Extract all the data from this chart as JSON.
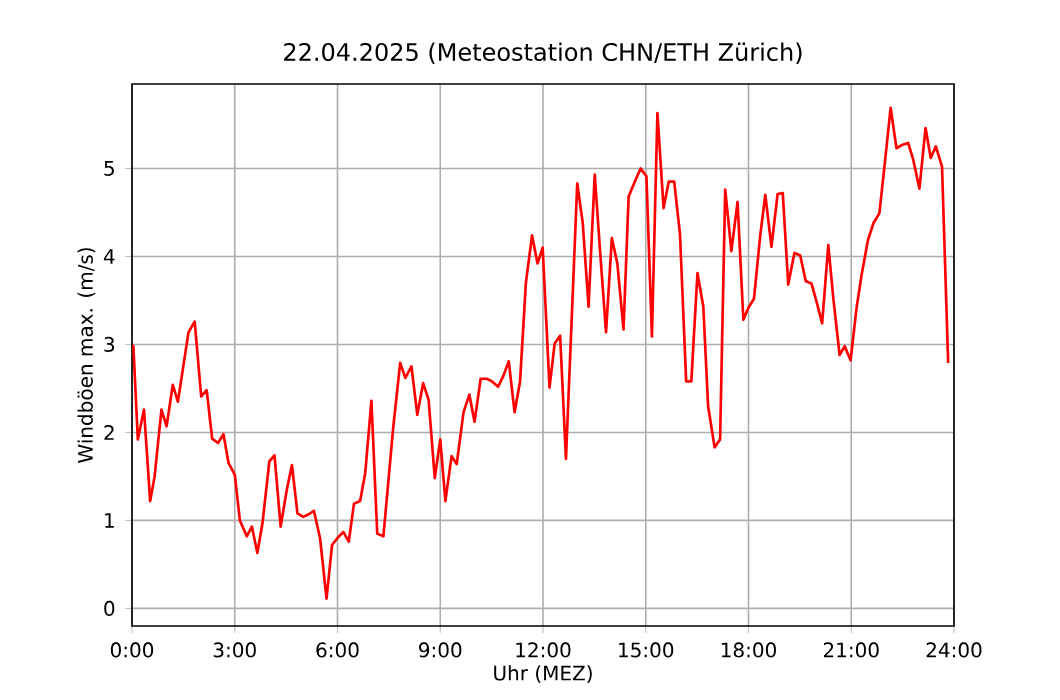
{
  "chart_data": {
    "type": "line",
    "title": "22.04.2025  (Meteostation CHN/ETH Zürich)",
    "xlabel": "Uhr (MEZ)",
    "ylabel": "Windböen max. (m/s)",
    "x": [
      0,
      0.04,
      0.17,
      0.35,
      0.53,
      0.66,
      0.86,
      1.01,
      1.19,
      1.34,
      1.65,
      1.83,
      2.02,
      2.18,
      2.34,
      2.51,
      2.67,
      2.82,
      3.0,
      3.15,
      3.35,
      3.5,
      3.66,
      3.81,
      4.01,
      4.16,
      4.34,
      4.52,
      4.67,
      4.83,
      5.0,
      5.16,
      5.31,
      5.49,
      5.68,
      5.84,
      6.0,
      6.17,
      6.33,
      6.48,
      6.66,
      6.81,
      6.99,
      7.16,
      7.34,
      7.63,
      7.83,
      7.98,
      8.16,
      8.33,
      8.5,
      8.66,
      8.84,
      9.0,
      9.15,
      9.33,
      9.48,
      9.68,
      9.85,
      10.0,
      10.18,
      10.36,
      10.51,
      10.69,
      10.84,
      11.0,
      11.17,
      11.33,
      11.5,
      11.68,
      11.84,
      11.99,
      12.19,
      12.34,
      12.5,
      12.67,
      13.0,
      13.16,
      13.33,
      13.51,
      13.67,
      13.84,
      14.01,
      14.17,
      14.35,
      14.5,
      14.68,
      14.85,
      15.02,
      15.18,
      15.34,
      15.52,
      15.67,
      15.83,
      16.0,
      16.18,
      16.33,
      16.51,
      16.68,
      16.82,
      17.01,
      17.17,
      17.32,
      17.5,
      17.68,
      17.85,
      18.0,
      18.16,
      18.34,
      18.49,
      18.67,
      18.85,
      19.0,
      19.16,
      19.34,
      19.51,
      19.67,
      19.84,
      19.99,
      20.15,
      20.33,
      20.48,
      20.66,
      20.81,
      20.98,
      21.16,
      21.31,
      21.49,
      21.65,
      21.82,
      21.98,
      22.15,
      22.32,
      22.5,
      22.66,
      22.81,
      22.99,
      23.17,
      23.32,
      23.47,
      23.65,
      23.83
    ],
    "series": [
      {
        "color": "#ff0000",
        "values": [
          2.98,
          2.98,
          1.92,
          2.26,
          1.22,
          1.5,
          2.26,
          2.07,
          2.54,
          2.35,
          3.14,
          3.26,
          2.41,
          2.48,
          1.93,
          1.88,
          1.98,
          1.65,
          1.52,
          1.0,
          0.82,
          0.93,
          0.63,
          0.97,
          1.67,
          1.74,
          0.93,
          1.35,
          1.63,
          1.08,
          1.04,
          1.07,
          1.11,
          0.8,
          0.11,
          0.72,
          0.8,
          0.87,
          0.76,
          1.19,
          1.22,
          1.54,
          2.36,
          0.85,
          0.82,
          2.07,
          2.79,
          2.62,
          2.75,
          2.2,
          2.56,
          2.37,
          1.48,
          1.92,
          1.22,
          1.73,
          1.64,
          2.23,
          2.43,
          2.12,
          2.61,
          2.61,
          2.58,
          2.52,
          2.64,
          2.81,
          2.23,
          2.58,
          3.7,
          4.24,
          3.92,
          4.1,
          2.51,
          3.01,
          3.1,
          1.7,
          4.83,
          4.38,
          3.43,
          4.93,
          4.04,
          3.14,
          4.21,
          3.92,
          3.17,
          4.68,
          4.85,
          5.0,
          4.91,
          3.09,
          5.63,
          4.55,
          4.85,
          4.85,
          4.25,
          2.58,
          2.58,
          3.81,
          3.43,
          2.3,
          1.83,
          1.92,
          4.76,
          4.06,
          4.62,
          3.28,
          3.42,
          3.52,
          4.23,
          4.7,
          4.11,
          4.71,
          4.72,
          3.68,
          4.04,
          4.01,
          3.72,
          3.69,
          3.48,
          3.24,
          4.13,
          3.51,
          2.88,
          2.98,
          2.82,
          3.43,
          3.81,
          4.19,
          4.38,
          4.49,
          5.06,
          5.69,
          5.23,
          5.27,
          5.29,
          5.1,
          4.77,
          5.46,
          5.12,
          5.25,
          5.02,
          2.79
        ]
      }
    ],
    "xlim": [
      0,
      24
    ],
    "ylim": [
      -0.2,
      5.96
    ],
    "xticks": [
      {
        "value": 0,
        "label": "0:00"
      },
      {
        "value": 3,
        "label": "3:00"
      },
      {
        "value": 6,
        "label": "6:00"
      },
      {
        "value": 9,
        "label": "9:00"
      },
      {
        "value": 12,
        "label": "12:00"
      },
      {
        "value": 15,
        "label": "15:00"
      },
      {
        "value": 18,
        "label": "18:00"
      },
      {
        "value": 21,
        "label": "21:00"
      },
      {
        "value": 24,
        "label": "24:00"
      }
    ],
    "yticks": [
      0,
      1,
      2,
      3,
      4,
      5
    ],
    "grid": true,
    "line_style": "solid",
    "marker": "none"
  }
}
